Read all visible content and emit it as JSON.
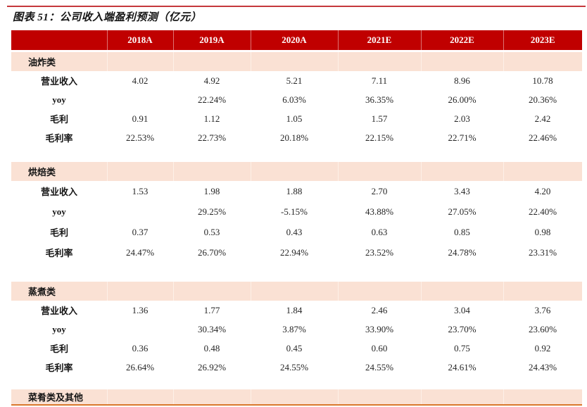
{
  "page": {
    "title": "图表 51：公司收入端盈利预测（亿元）"
  },
  "colors": {
    "top_rule": "#c5383c",
    "header_bg": "#c00000",
    "header_text": "#ffffff",
    "category_bg": "#fae1d4",
    "bottom_rule": "#d9782d",
    "title_text": "#151515"
  },
  "table": {
    "corner_label": "",
    "columns": [
      "2018A",
      "2019A",
      "2020A",
      "2021E",
      "2022E",
      "2023E"
    ],
    "groups": [
      {
        "category": "油炸类",
        "rows": [
          {
            "label": "营业收入",
            "values": [
              "4.02",
              "4.92",
              "5.21",
              "7.11",
              "8.96",
              "10.78"
            ]
          },
          {
            "label": "yoy",
            "values": [
              "",
              "22.24%",
              "6.03%",
              "36.35%",
              "26.00%",
              "20.36%"
            ]
          },
          {
            "label": "毛利",
            "values": [
              "0.91",
              "1.12",
              "1.05",
              "1.57",
              "2.03",
              "2.42"
            ]
          },
          {
            "label": "毛利率",
            "values": [
              "22.53%",
              "22.73%",
              "20.18%",
              "22.15%",
              "22.71%",
              "22.46%"
            ]
          }
        ]
      },
      {
        "category": "烘焙类",
        "rows": [
          {
            "label": "营业收入",
            "values": [
              "1.53",
              "1.98",
              "1.88",
              "2.70",
              "3.43",
              "4.20"
            ]
          },
          {
            "label": "yoy",
            "values": [
              "",
              "29.25%",
              "-5.15%",
              "43.88%",
              "27.05%",
              "22.40%"
            ]
          },
          {
            "label": "毛利",
            "values": [
              "0.37",
              "0.53",
              "0.43",
              "0.63",
              "0.85",
              "0.98"
            ]
          },
          {
            "label": "毛利率",
            "values": [
              "24.47%",
              "26.70%",
              "22.94%",
              "23.52%",
              "24.78%",
              "23.31%"
            ]
          }
        ]
      },
      {
        "category": "蒸煮类",
        "rows": [
          {
            "label": "营业收入",
            "values": [
              "1.36",
              "1.77",
              "1.84",
              "2.46",
              "3.04",
              "3.76"
            ]
          },
          {
            "label": "yoy",
            "values": [
              "",
              "30.34%",
              "3.87%",
              "33.90%",
              "23.70%",
              "23.60%"
            ]
          },
          {
            "label": "毛利",
            "values": [
              "0.36",
              "0.48",
              "0.45",
              "0.60",
              "0.75",
              "0.92"
            ]
          },
          {
            "label": "毛利率",
            "values": [
              "26.64%",
              "26.92%",
              "24.55%",
              "24.55%",
              "24.61%",
              "24.43%"
            ]
          }
        ]
      },
      {
        "category": "菜肴类及其他",
        "rows": []
      }
    ]
  }
}
